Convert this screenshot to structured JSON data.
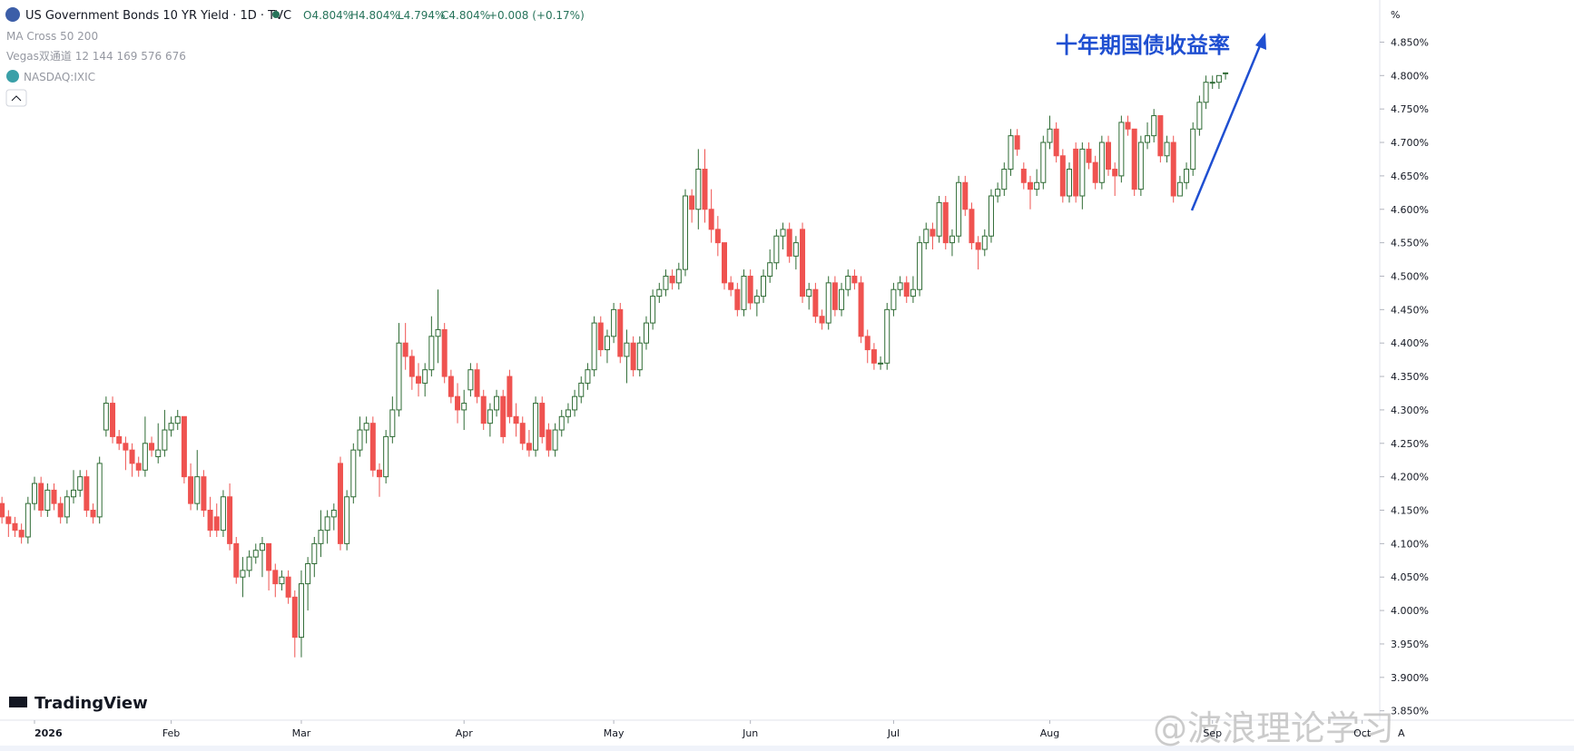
{
  "header": {
    "symbol": "US Government Bonds 10 YR Yield · 1D · TVC",
    "open": "O4.804%",
    "high": "H4.804%",
    "low": "L4.794%",
    "close": "C4.804%",
    "change": "+0.008 (+0.17%)",
    "indicators": [
      "MA Cross 50 200",
      "Vegas双通道 12 144 169 576 676",
      "NASDAQ:IXIC"
    ]
  },
  "logo": "TradingView",
  "watermark": "@波浪理论学习",
  "axis_unit": "%",
  "axis_mode": "A",
  "chart_data": {
    "type": "candlestick",
    "annotation": "十年期国债收益率",
    "up_color": "#ffffff",
    "up_border": "#2e6b34",
    "down_color": "#ef5350",
    "ylim": [
      3.836,
      4.913
    ],
    "xlim": [
      -0.3,
      211.7
    ],
    "yticks": [
      {
        "value": 3.85,
        "label": "3.850%"
      },
      {
        "value": 3.9,
        "label": "3.900%"
      },
      {
        "value": 3.95,
        "label": "3.950%"
      },
      {
        "value": 4.0,
        "label": "4.000%"
      },
      {
        "value": 4.05,
        "label": "4.050%"
      },
      {
        "value": 4.1,
        "label": "4.100%"
      },
      {
        "value": 4.15,
        "label": "4.150%"
      },
      {
        "value": 4.2,
        "label": "4.200%"
      },
      {
        "value": 4.25,
        "label": "4.250%"
      },
      {
        "value": 4.3,
        "label": "4.300%"
      },
      {
        "value": 4.35,
        "label": "4.350%"
      },
      {
        "value": 4.4,
        "label": "4.400%"
      },
      {
        "value": 4.45,
        "label": "4.450%"
      },
      {
        "value": 4.5,
        "label": "4.500%"
      },
      {
        "value": 4.55,
        "label": "4.550%"
      },
      {
        "value": 4.6,
        "label": "4.600%"
      },
      {
        "value": 4.65,
        "label": "4.650%"
      },
      {
        "value": 4.7,
        "label": "4.700%"
      },
      {
        "value": 4.75,
        "label": "4.750%"
      },
      {
        "value": 4.8,
        "label": "4.800%"
      },
      {
        "value": 4.85,
        "label": "4.850%"
      }
    ],
    "xticks": [
      {
        "value": 5,
        "label": "2026"
      },
      {
        "value": 26,
        "label": "Feb"
      },
      {
        "value": 46,
        "label": "Mar"
      },
      {
        "value": 71,
        "label": "Apr"
      },
      {
        "value": 94,
        "label": "May"
      },
      {
        "value": 115,
        "label": "Jun"
      },
      {
        "value": 137,
        "label": "Jul"
      },
      {
        "value": 161,
        "label": "Aug"
      },
      {
        "value": 186,
        "label": "Sep"
      },
      {
        "value": 209,
        "label": "Oct"
      }
    ],
    "candles": [
      [
        4.16,
        4.17,
        4.13,
        4.14
      ],
      [
        4.14,
        4.15,
        4.11,
        4.13
      ],
      [
        4.13,
        4.14,
        4.11,
        4.12
      ],
      [
        4.12,
        4.13,
        4.1,
        4.11
      ],
      [
        4.11,
        4.17,
        4.1,
        4.16
      ],
      [
        4.16,
        4.2,
        4.15,
        4.19
      ],
      [
        4.19,
        4.2,
        4.14,
        4.15
      ],
      [
        4.15,
        4.19,
        4.14,
        4.18
      ],
      [
        4.18,
        4.19,
        4.15,
        4.16
      ],
      [
        4.16,
        4.17,
        4.13,
        4.14
      ],
      [
        4.14,
        4.18,
        4.13,
        4.17
      ],
      [
        4.17,
        4.21,
        4.16,
        4.18
      ],
      [
        4.18,
        4.21,
        4.17,
        4.2
      ],
      [
        4.2,
        4.21,
        4.14,
        4.15
      ],
      [
        4.15,
        4.16,
        4.13,
        4.14
      ],
      [
        4.14,
        4.23,
        4.13,
        4.22
      ],
      [
        4.27,
        4.32,
        4.26,
        4.31
      ],
      [
        4.31,
        4.32,
        4.25,
        4.26
      ],
      [
        4.26,
        4.27,
        4.24,
        4.25
      ],
      [
        4.25,
        4.26,
        4.21,
        4.24
      ],
      [
        4.24,
        4.25,
        4.2,
        4.22
      ],
      [
        4.22,
        4.23,
        4.2,
        4.21
      ],
      [
        4.21,
        4.29,
        4.2,
        4.25
      ],
      [
        4.25,
        4.26,
        4.23,
        4.24
      ],
      [
        4.23,
        4.28,
        4.22,
        4.24
      ],
      [
        4.24,
        4.3,
        4.23,
        4.27
      ],
      [
        4.27,
        4.29,
        4.26,
        4.28
      ],
      [
        4.28,
        4.3,
        4.27,
        4.29
      ],
      [
        4.29,
        4.29,
        4.19,
        4.2
      ],
      [
        4.2,
        4.22,
        4.15,
        4.16
      ],
      [
        4.16,
        4.24,
        4.15,
        4.2
      ],
      [
        4.2,
        4.21,
        4.14,
        4.15
      ],
      [
        4.15,
        4.17,
        4.11,
        4.12
      ],
      [
        4.14,
        4.16,
        4.11,
        4.12
      ],
      [
        4.12,
        4.18,
        4.11,
        4.17
      ],
      [
        4.17,
        4.19,
        4.09,
        4.1
      ],
      [
        4.1,
        4.11,
        4.04,
        4.05
      ],
      [
        4.05,
        4.08,
        4.02,
        4.06
      ],
      [
        4.06,
        4.09,
        4.05,
        4.08
      ],
      [
        4.08,
        4.1,
        4.07,
        4.09
      ],
      [
        4.09,
        4.11,
        4.05,
        4.1
      ],
      [
        4.1,
        4.1,
        4.03,
        4.06
      ],
      [
        4.06,
        4.07,
        4.02,
        4.04
      ],
      [
        4.04,
        4.06,
        4.03,
        4.05
      ],
      [
        4.05,
        4.06,
        4.01,
        4.02
      ],
      [
        4.02,
        4.03,
        3.93,
        3.96
      ],
      [
        3.96,
        4.06,
        3.93,
        4.04
      ],
      [
        4.04,
        4.08,
        4.0,
        4.07
      ],
      [
        4.07,
        4.11,
        4.05,
        4.1
      ],
      [
        4.1,
        4.15,
        4.08,
        4.12
      ],
      [
        4.12,
        4.15,
        4.1,
        4.14
      ],
      [
        4.14,
        4.16,
        4.12,
        4.15
      ],
      [
        4.22,
        4.23,
        4.09,
        4.1
      ],
      [
        4.1,
        4.18,
        4.09,
        4.17
      ],
      [
        4.17,
        4.25,
        4.16,
        4.24
      ],
      [
        4.24,
        4.29,
        4.23,
        4.27
      ],
      [
        4.27,
        4.29,
        4.25,
        4.28
      ],
      [
        4.28,
        4.29,
        4.2,
        4.21
      ],
      [
        4.21,
        4.22,
        4.17,
        4.2
      ],
      [
        4.2,
        4.27,
        4.19,
        4.26
      ],
      [
        4.26,
        4.32,
        4.25,
        4.3
      ],
      [
        4.3,
        4.43,
        4.29,
        4.4
      ],
      [
        4.4,
        4.43,
        4.36,
        4.38
      ],
      [
        4.38,
        4.39,
        4.33,
        4.35
      ],
      [
        4.35,
        4.37,
        4.32,
        4.34
      ],
      [
        4.34,
        4.37,
        4.32,
        4.36
      ],
      [
        4.36,
        4.44,
        4.35,
        4.41
      ],
      [
        4.41,
        4.48,
        4.37,
        4.42
      ],
      [
        4.42,
        4.43,
        4.34,
        4.35
      ],
      [
        4.35,
        4.36,
        4.31,
        4.32
      ],
      [
        4.32,
        4.34,
        4.28,
        4.3
      ],
      [
        4.3,
        4.33,
        4.27,
        4.31
      ],
      [
        4.33,
        4.37,
        4.32,
        4.36
      ],
      [
        4.36,
        4.37,
        4.31,
        4.32
      ],
      [
        4.32,
        4.33,
        4.27,
        4.28
      ],
      [
        4.28,
        4.31,
        4.26,
        4.3
      ],
      [
        4.3,
        4.33,
        4.29,
        4.32
      ],
      [
        4.32,
        4.33,
        4.25,
        4.26
      ],
      [
        4.35,
        4.36,
        4.28,
        4.29
      ],
      [
        4.29,
        4.31,
        4.26,
        4.28
      ],
      [
        4.28,
        4.29,
        4.24,
        4.25
      ],
      [
        4.25,
        4.27,
        4.23,
        4.24
      ],
      [
        4.24,
        4.32,
        4.23,
        4.31
      ],
      [
        4.31,
        4.32,
        4.25,
        4.26
      ],
      [
        4.27,
        4.28,
        4.23,
        4.24
      ],
      [
        4.24,
        4.28,
        4.23,
        4.27
      ],
      [
        4.27,
        4.3,
        4.26,
        4.29
      ],
      [
        4.29,
        4.31,
        4.28,
        4.3
      ],
      [
        4.3,
        4.33,
        4.29,
        4.32
      ],
      [
        4.32,
        4.35,
        4.31,
        4.34
      ],
      [
        4.34,
        4.37,
        4.33,
        4.36
      ],
      [
        4.36,
        4.44,
        4.35,
        4.43
      ],
      [
        4.43,
        4.44,
        4.38,
        4.39
      ],
      [
        4.39,
        4.42,
        4.37,
        4.41
      ],
      [
        4.41,
        4.46,
        4.4,
        4.45
      ],
      [
        4.45,
        4.46,
        4.37,
        4.38
      ],
      [
        4.38,
        4.42,
        4.34,
        4.4
      ],
      [
        4.4,
        4.41,
        4.35,
        4.36
      ],
      [
        4.36,
        4.41,
        4.35,
        4.4
      ],
      [
        4.4,
        4.44,
        4.39,
        4.43
      ],
      [
        4.43,
        4.48,
        4.42,
        4.47
      ],
      [
        4.47,
        4.49,
        4.46,
        4.48
      ],
      [
        4.48,
        4.51,
        4.47,
        4.5
      ],
      [
        4.5,
        4.51,
        4.48,
        4.49
      ],
      [
        4.49,
        4.52,
        4.48,
        4.51
      ],
      [
        4.51,
        4.63,
        4.5,
        4.62
      ],
      [
        4.62,
        4.63,
        4.58,
        4.6
      ],
      [
        4.6,
        4.69,
        4.57,
        4.66
      ],
      [
        4.66,
        4.69,
        4.58,
        4.6
      ],
      [
        4.6,
        4.63,
        4.55,
        4.57
      ],
      [
        4.57,
        4.59,
        4.53,
        4.55
      ],
      [
        4.55,
        4.55,
        4.48,
        4.49
      ],
      [
        4.49,
        4.5,
        4.47,
        4.48
      ],
      [
        4.48,
        4.49,
        4.44,
        4.45
      ],
      [
        4.45,
        4.51,
        4.44,
        4.5
      ],
      [
        4.5,
        4.51,
        4.45,
        4.46
      ],
      [
        4.46,
        4.48,
        4.44,
        4.47
      ],
      [
        4.47,
        4.51,
        4.46,
        4.5
      ],
      [
        4.5,
        4.54,
        4.49,
        4.52
      ],
      [
        4.52,
        4.57,
        4.51,
        4.56
      ],
      [
        4.56,
        4.58,
        4.54,
        4.57
      ],
      [
        4.57,
        4.58,
        4.52,
        4.53
      ],
      [
        4.53,
        4.56,
        4.51,
        4.55
      ],
      [
        4.57,
        4.58,
        4.46,
        4.47
      ],
      [
        4.47,
        4.49,
        4.45,
        4.48
      ],
      [
        4.48,
        4.49,
        4.43,
        4.44
      ],
      [
        4.44,
        4.45,
        4.42,
        4.43
      ],
      [
        4.43,
        4.5,
        4.42,
        4.49
      ],
      [
        4.49,
        4.5,
        4.44,
        4.45
      ],
      [
        4.45,
        4.49,
        4.44,
        4.48
      ],
      [
        4.48,
        4.51,
        4.47,
        4.5
      ],
      [
        4.5,
        4.51,
        4.48,
        4.49
      ],
      [
        4.49,
        4.5,
        4.4,
        4.41
      ],
      [
        4.41,
        4.42,
        4.37,
        4.39
      ],
      [
        4.39,
        4.4,
        4.36,
        4.37
      ],
      [
        4.37,
        4.38,
        4.36,
        4.37
      ],
      [
        4.37,
        4.46,
        4.36,
        4.45
      ],
      [
        4.45,
        4.49,
        4.44,
        4.48
      ],
      [
        4.48,
        4.5,
        4.47,
        4.49
      ],
      [
        4.49,
        4.5,
        4.46,
        4.47
      ],
      [
        4.47,
        4.5,
        4.46,
        4.48
      ],
      [
        4.48,
        4.56,
        4.47,
        4.55
      ],
      [
        4.55,
        4.58,
        4.54,
        4.57
      ],
      [
        4.57,
        4.58,
        4.54,
        4.56
      ],
      [
        4.56,
        4.62,
        4.55,
        4.61
      ],
      [
        4.61,
        4.62,
        4.54,
        4.55
      ],
      [
        4.55,
        4.57,
        4.53,
        4.56
      ],
      [
        4.56,
        4.65,
        4.55,
        4.64
      ],
      [
        4.64,
        4.65,
        4.59,
        4.6
      ],
      [
        4.6,
        4.61,
        4.54,
        4.55
      ],
      [
        4.55,
        4.56,
        4.51,
        4.54
      ],
      [
        4.54,
        4.57,
        4.53,
        4.56
      ],
      [
        4.56,
        4.63,
        4.55,
        4.62
      ],
      [
        4.62,
        4.64,
        4.61,
        4.63
      ],
      [
        4.63,
        4.67,
        4.62,
        4.66
      ],
      [
        4.66,
        4.72,
        4.65,
        4.71
      ],
      [
        4.71,
        4.72,
        4.68,
        4.69
      ],
      [
        4.66,
        4.67,
        4.63,
        4.64
      ],
      [
        4.64,
        4.65,
        4.6,
        4.63
      ],
      [
        4.63,
        4.66,
        4.62,
        4.64
      ],
      [
        4.64,
        4.71,
        4.63,
        4.7
      ],
      [
        4.7,
        4.74,
        4.69,
        4.72
      ],
      [
        4.72,
        4.73,
        4.67,
        4.68
      ],
      [
        4.68,
        4.69,
        4.61,
        4.62
      ],
      [
        4.62,
        4.67,
        4.61,
        4.66
      ],
      [
        4.69,
        4.7,
        4.61,
        4.62
      ],
      [
        4.62,
        4.7,
        4.6,
        4.69
      ],
      [
        4.69,
        4.7,
        4.66,
        4.67
      ],
      [
        4.67,
        4.68,
        4.63,
        4.64
      ],
      [
        4.64,
        4.71,
        4.63,
        4.7
      ],
      [
        4.7,
        4.71,
        4.65,
        4.66
      ],
      [
        4.66,
        4.67,
        4.62,
        4.65
      ],
      [
        4.65,
        4.74,
        4.64,
        4.73
      ],
      [
        4.73,
        4.74,
        4.71,
        4.72
      ],
      [
        4.72,
        4.72,
        4.62,
        4.63
      ],
      [
        4.63,
        4.71,
        4.62,
        4.7
      ],
      [
        4.7,
        4.73,
        4.69,
        4.71
      ],
      [
        4.71,
        4.75,
        4.7,
        4.74
      ],
      [
        4.74,
        4.74,
        4.67,
        4.68
      ],
      [
        4.68,
        4.71,
        4.67,
        4.7
      ],
      [
        4.7,
        4.71,
        4.61,
        4.62
      ],
      [
        4.62,
        4.65,
        4.62,
        4.64
      ],
      [
        4.64,
        4.67,
        4.63,
        4.66
      ],
      [
        4.66,
        4.73,
        4.65,
        4.72
      ],
      [
        4.72,
        4.77,
        4.71,
        4.76
      ],
      [
        4.76,
        4.8,
        4.75,
        4.79
      ],
      [
        4.79,
        4.8,
        4.78,
        4.79
      ],
      [
        4.79,
        4.8,
        4.78,
        4.8
      ],
      [
        4.804,
        4.804,
        4.794,
        4.804
      ]
    ]
  }
}
